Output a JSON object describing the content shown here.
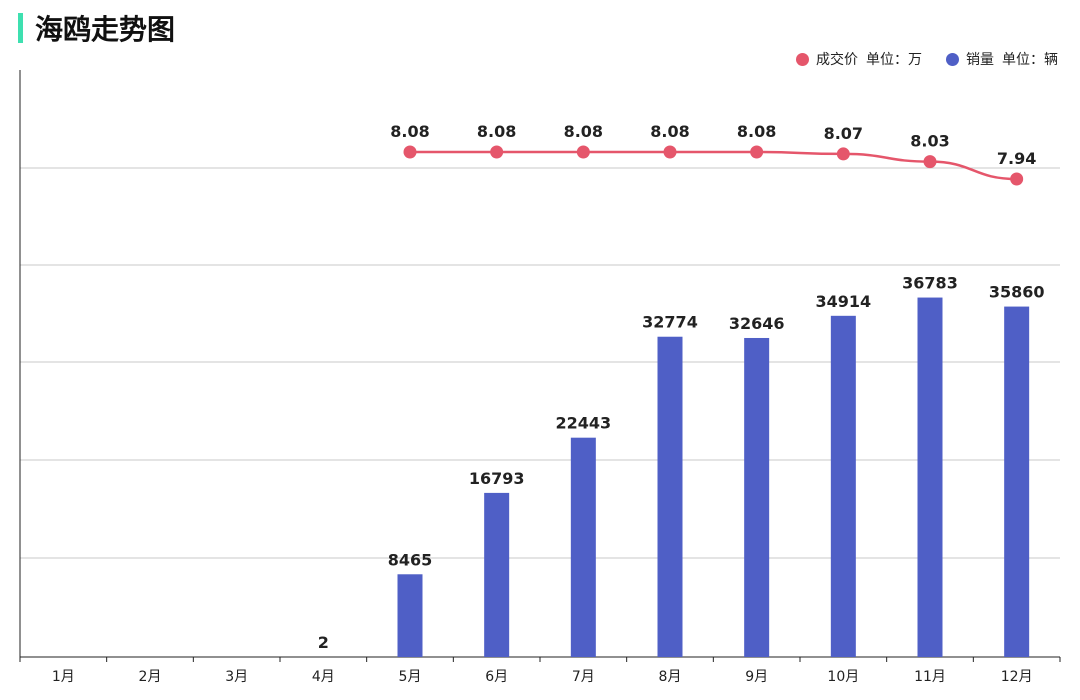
{
  "title": "海鸥走势图",
  "colors": {
    "accent": "#3ee0b0",
    "price_line": "#e5566b",
    "sales_bar": "#4f5fc6",
    "grid": "#c8c8c8",
    "axis": "#222222"
  },
  "legend": [
    {
      "name": "成交价",
      "unit": "单位：万"
    },
    {
      "name": "销量",
      "unit": "单位：辆"
    }
  ],
  "chart_data": {
    "type": "bar",
    "categories": [
      "1月",
      "2月",
      "3月",
      "4月",
      "5月",
      "6月",
      "7月",
      "8月",
      "9月",
      "10月",
      "11月",
      "12月"
    ],
    "series": [
      {
        "name": "销量",
        "type": "bar",
        "unit": "辆",
        "values": [
          null,
          null,
          null,
          2,
          8465,
          16793,
          22443,
          32774,
          32646,
          34914,
          36783,
          35860
        ]
      },
      {
        "name": "成交价",
        "type": "line",
        "unit": "万",
        "values": [
          null,
          null,
          null,
          null,
          8.08,
          8.08,
          8.08,
          8.08,
          8.08,
          8.07,
          8.03,
          7.94
        ]
      }
    ],
    "grid": true,
    "legend_position": "top-right"
  }
}
